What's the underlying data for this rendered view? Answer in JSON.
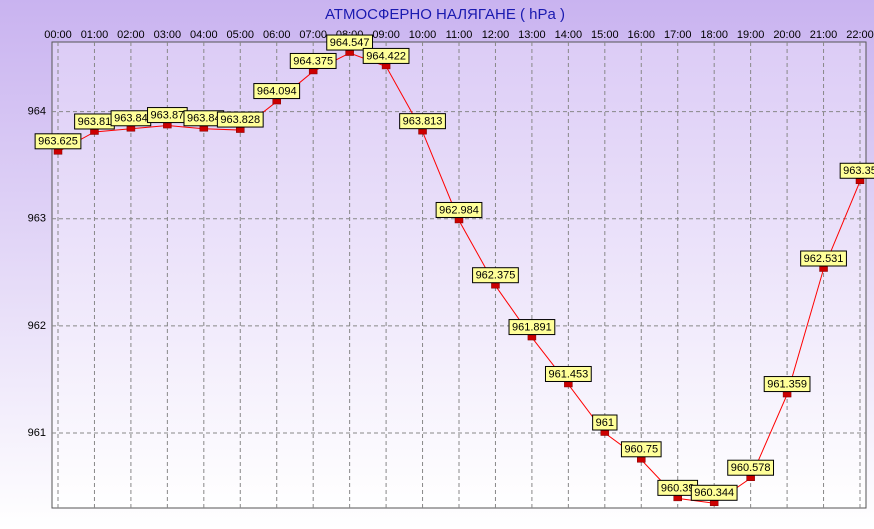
{
  "chart_data": {
    "type": "line",
    "title": "АТМОСФЕРНО НАЛЯГАНЕ  ( hPa )",
    "categories": [
      "00:00",
      "01:00",
      "02:00",
      "03:00",
      "04:00",
      "05:00",
      "06:00",
      "07:00",
      "08:00",
      "09:00",
      "10:00",
      "11:00",
      "12:00",
      "13:00",
      "14:00",
      "15:00",
      "16:00",
      "17:00",
      "18:00",
      "19:00",
      "20:00",
      "21:00",
      "22:00"
    ],
    "series": [
      {
        "color": "#ff0000",
        "values": [
          963.625,
          963.81,
          963.84,
          963.87,
          963.84,
          963.828,
          964.094,
          964.375,
          964.547,
          964.422,
          963.813,
          962.984,
          962.375,
          961.891,
          961.453,
          961,
          960.75,
          960.39,
          960.344,
          960.578,
          961.359,
          962.531,
          963.35
        ]
      }
    ],
    "ylim": [
      960.3,
      964.65
    ],
    "yticks": [
      961,
      962,
      963,
      964
    ],
    "grid": true
  }
}
